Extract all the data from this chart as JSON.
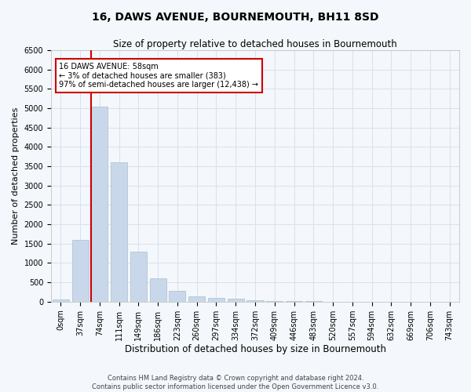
{
  "title": "16, DAWS AVENUE, BOURNEMOUTH, BH11 8SD",
  "subtitle": "Size of property relative to detached houses in Bournemouth",
  "xlabel": "Distribution of detached houses by size in Bournemouth",
  "ylabel": "Number of detached properties",
  "footer_line1": "Contains HM Land Registry data © Crown copyright and database right 2024.",
  "footer_line2": "Contains public sector information licensed under the Open Government Licence v3.0.",
  "bin_labels": [
    "0sqm",
    "37sqm",
    "74sqm",
    "111sqm",
    "149sqm",
    "186sqm",
    "223sqm",
    "260sqm",
    "297sqm",
    "334sqm",
    "372sqm",
    "409sqm",
    "446sqm",
    "483sqm",
    "520sqm",
    "557sqm",
    "594sqm",
    "632sqm",
    "669sqm",
    "706sqm",
    "743sqm"
  ],
  "bar_heights": [
    50,
    1600,
    5050,
    3600,
    1300,
    600,
    270,
    130,
    100,
    70,
    30,
    20,
    10,
    5,
    3,
    2,
    1,
    1,
    0,
    0,
    0
  ],
  "bar_color": "#c8d8ea",
  "bar_edge_color": "#a8bece",
  "grid_color": "#d8e2ee",
  "annotation_text": "16 DAWS AVENUE: 58sqm\n← 3% of detached houses are smaller (383)\n97% of semi-detached houses are larger (12,438) →",
  "annotation_box_color": "#ffffff",
  "annotation_box_edge_color": "#cc0000",
  "vline_color": "#cc0000",
  "vline_x": 1.57,
  "ylim": [
    0,
    6500
  ],
  "yticks": [
    0,
    500,
    1000,
    1500,
    2000,
    2500,
    3000,
    3500,
    4000,
    4500,
    5000,
    5500,
    6000,
    6500
  ],
  "bg_color": "#f4f7fb",
  "plot_bg_color": "#f4f7fb",
  "title_fontsize": 10,
  "subtitle_fontsize": 8.5,
  "xlabel_fontsize": 8.5,
  "ylabel_fontsize": 8,
  "tick_fontsize": 7,
  "annotation_fontsize": 7,
  "footer_fontsize": 6
}
